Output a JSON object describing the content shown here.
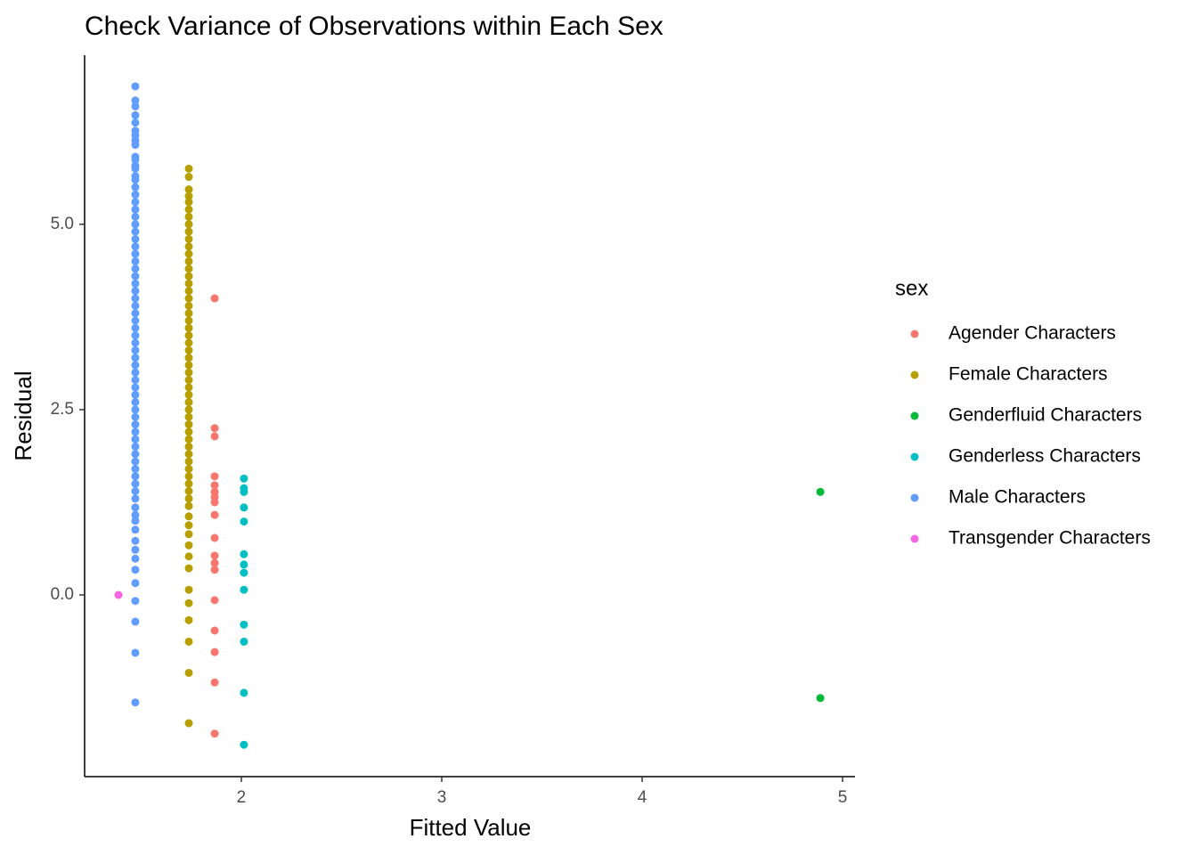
{
  "chart_data": {
    "type": "scatter",
    "title": "Check Variance of Observations within Each Sex",
    "x_label": "Fitted Value",
    "y_label": "Residual",
    "legend_title": "sex",
    "legend": "right",
    "xlim": [
      1.218,
      5.062
    ],
    "ylim": [
      -2.45,
      7.28
    ],
    "xticks": [
      2,
      3,
      4,
      5
    ],
    "yticks": [
      {
        "value": 0,
        "label": "0.0"
      },
      {
        "value": 2.5,
        "label": "2.5"
      },
      {
        "value": 5,
        "label": "5.0"
      }
    ],
    "series": [
      {
        "name": "Agender Characters",
        "color": "#F8766D",
        "x": [
          1.867,
          1.867,
          1.867,
          1.867,
          1.867,
          1.867,
          1.867,
          1.867,
          1.867,
          1.867,
          1.867,
          1.867,
          1.867,
          1.867,
          1.867,
          1.867,
          1.867,
          1.867
        ],
        "values": [
          4.0,
          2.25,
          2.14,
          1.6,
          1.48,
          1.39,
          1.32,
          1.25,
          1.08,
          0.77,
          0.53,
          0.43,
          0.34,
          -0.07,
          -0.48,
          -0.77,
          -1.18,
          -1.87
        ]
      },
      {
        "name": "Female Characters",
        "color": "#B79F00",
        "x": [
          1.738,
          1.738,
          1.738,
          1.738,
          1.738,
          1.738,
          1.738,
          1.738,
          1.738,
          1.738,
          1.738,
          1.738,
          1.738,
          1.738,
          1.738,
          1.738,
          1.738,
          1.738,
          1.738,
          1.738,
          1.738,
          1.738,
          1.738,
          1.738,
          1.738,
          1.738,
          1.738,
          1.738,
          1.738,
          1.738,
          1.738,
          1.738,
          1.738,
          1.738,
          1.738,
          1.738,
          1.738,
          1.738,
          1.738,
          1.738,
          1.738,
          1.738,
          1.738,
          1.738,
          1.738,
          1.738,
          1.738,
          1.738,
          1.738,
          1.738,
          1.738,
          1.738,
          1.738,
          1.738,
          1.738,
          1.738,
          1.738,
          1.738
        ],
        "values": [
          5.75,
          5.64,
          5.47,
          5.38,
          5.3,
          5.2,
          5.1,
          5.0,
          4.9,
          4.8,
          4.7,
          4.6,
          4.5,
          4.4,
          4.3,
          4.2,
          4.1,
          4.0,
          3.9,
          3.8,
          3.7,
          3.6,
          3.5,
          3.4,
          3.3,
          3.2,
          3.1,
          3.0,
          2.9,
          2.8,
          2.7,
          2.6,
          2.5,
          2.4,
          2.3,
          2.2,
          2.1,
          2.0,
          1.9,
          1.8,
          1.7,
          1.6,
          1.5,
          1.4,
          1.3,
          1.2,
          1.06,
          0.94,
          0.82,
          0.67,
          0.52,
          0.36,
          0.07,
          -0.11,
          -0.34,
          -0.63,
          -1.05,
          -1.73
        ]
      },
      {
        "name": "Genderfluid Characters",
        "color": "#00BA38",
        "x": [
          4.889,
          4.889
        ],
        "values": [
          1.39,
          -1.39
        ]
      },
      {
        "name": "Genderless Characters",
        "color": "#00BFC4",
        "x": [
          2.013,
          2.013,
          2.013,
          2.013,
          2.013,
          2.013,
          2.013,
          2.013,
          2.013,
          2.013,
          2.013,
          2.013,
          2.013
        ],
        "values": [
          1.57,
          1.44,
          1.39,
          1.18,
          0.99,
          0.55,
          0.41,
          0.3,
          0.07,
          -0.4,
          -0.63,
          -1.32,
          -2.02
        ]
      },
      {
        "name": "Male Characters",
        "color": "#619CFF",
        "x": [
          1.471,
          1.471,
          1.471,
          1.471,
          1.471,
          1.471,
          1.471,
          1.471,
          1.471,
          1.471,
          1.471,
          1.471,
          1.471,
          1.471,
          1.471,
          1.471,
          1.471,
          1.471,
          1.471,
          1.471,
          1.471,
          1.471,
          1.471,
          1.471,
          1.471,
          1.471,
          1.471,
          1.471,
          1.471,
          1.471,
          1.471,
          1.471,
          1.471,
          1.471,
          1.471,
          1.471,
          1.471,
          1.471,
          1.471,
          1.471,
          1.471,
          1.471,
          1.471,
          1.471,
          1.471,
          1.471,
          1.471,
          1.471,
          1.471,
          1.471,
          1.471,
          1.471,
          1.471,
          1.471,
          1.471,
          1.471,
          1.471,
          1.471,
          1.471,
          1.471,
          1.471,
          1.471,
          1.471,
          1.471,
          1.471,
          1.471,
          1.471,
          1.471,
          1.471,
          1.471,
          1.471
        ],
        "values": [
          6.86,
          6.67,
          6.59,
          6.47,
          6.37,
          6.26,
          6.2,
          6.13,
          6.07,
          5.91,
          5.87,
          5.79,
          5.75,
          5.65,
          5.6,
          5.5,
          5.4,
          5.3,
          5.2,
          5.1,
          5.0,
          4.9,
          4.8,
          4.7,
          4.6,
          4.5,
          4.4,
          4.3,
          4.2,
          4.1,
          4.0,
          3.9,
          3.8,
          3.7,
          3.6,
          3.5,
          3.4,
          3.3,
          3.2,
          3.1,
          3.0,
          2.9,
          2.8,
          2.7,
          2.6,
          2.5,
          2.4,
          2.3,
          2.2,
          2.1,
          2.0,
          1.9,
          1.8,
          1.7,
          1.6,
          1.5,
          1.4,
          1.3,
          1.18,
          1.08,
          1.0,
          0.88,
          0.73,
          0.61,
          0.49,
          0.34,
          0.16,
          -0.08,
          -0.36,
          -0.78,
          -1.45
        ]
      },
      {
        "name": "Transgender Characters",
        "color": "#F564E3",
        "x": [
          1.387
        ],
        "values": [
          0
        ]
      }
    ]
  }
}
